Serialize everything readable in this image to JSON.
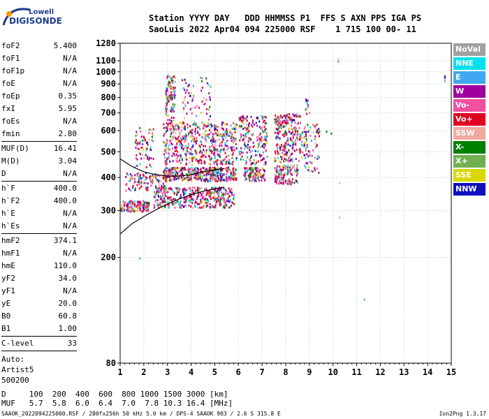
{
  "logo": {
    "top": "Lowell",
    "bottom": "DIGISONDE"
  },
  "header": {
    "line1": "Station YYYY DAY   DDD HHMMSS P1  FFS S AXN PPS IGA PS",
    "line2": "SaoLuis 2022 Apr04 094 225000 RSF    1 715 100 00- 11"
  },
  "params": {
    "group1": [
      {
        "name": "foF2",
        "value": "5.400"
      },
      {
        "name": "foF1",
        "value": "N/A"
      },
      {
        "name": "foF1p",
        "value": "N/A"
      },
      {
        "name": "foE",
        "value": "N/A"
      },
      {
        "name": "foEp",
        "value": "0.35"
      },
      {
        "name": "fxI",
        "value": "5.95"
      },
      {
        "name": "foEs",
        "value": "N/A"
      },
      {
        "name": "fmin",
        "value": "2.80"
      }
    ],
    "group2": [
      {
        "name": "MUF(D)",
        "value": "16.41"
      },
      {
        "name": "M(D)",
        "value": "3.04"
      },
      {
        "name": "D",
        "value": "N/A"
      }
    ],
    "group3": [
      {
        "name": "h`F",
        "value": "400.0"
      },
      {
        "name": "h`F2",
        "value": "400.0"
      },
      {
        "name": "h`E",
        "value": "N/A"
      },
      {
        "name": "h`Es",
        "value": "N/A"
      }
    ],
    "group4": [
      {
        "name": "hmF2",
        "value": "374.1"
      },
      {
        "name": "hmF1",
        "value": "N/A"
      },
      {
        "name": "hmE",
        "value": "110.0"
      },
      {
        "name": "yF2",
        "value": "34.0"
      },
      {
        "name": "yF1",
        "value": "N/A"
      },
      {
        "name": "yE",
        "value": "20.0"
      },
      {
        "name": "B0",
        "value": "60.8"
      },
      {
        "name": "B1",
        "value": "1.00"
      }
    ],
    "group5": [
      {
        "name": "C-level",
        "value": "33"
      }
    ],
    "auto": [
      "Auto:",
      "Artist5",
      "500200"
    ]
  },
  "legend": [
    {
      "label": "NoVal",
      "color": "#a0a0a0"
    },
    {
      "label": "NNE",
      "color": "#00e0f0"
    },
    {
      "label": "E",
      "color": "#40a8f0"
    },
    {
      "label": "W",
      "color": "#a000a0"
    },
    {
      "label": "Vo-",
      "color": "#f050a0"
    },
    {
      "label": "Vo+",
      "color": "#e00020"
    },
    {
      "label": "SSW",
      "color": "#f0a8a0"
    },
    {
      "label": "X-",
      "color": "#008000"
    },
    {
      "label": "X+",
      "color": "#70b050"
    },
    {
      "label": "SSE",
      "color": "#d8d800"
    },
    {
      "label": "NNW",
      "color": "#1010c0"
    }
  ],
  "chart_data": {
    "type": "scatter",
    "title": "",
    "xlabel": "",
    "ylabel": "",
    "xlim": [
      1,
      15
    ],
    "ylim": [
      80,
      1280
    ],
    "yscale": "log",
    "x_ticks": [
      "1",
      "2",
      "3",
      "4",
      "5",
      "6",
      "7",
      "8",
      "9",
      "10",
      "11",
      "12",
      "13",
      "14",
      "15"
    ],
    "y_ticks": [
      "80",
      "200",
      "300",
      "400",
      "500",
      "600",
      "700",
      "800",
      "900",
      "1000",
      "1100",
      "1280"
    ],
    "grid": true,
    "clusters": [
      {
        "f": [
          1.0,
          2.2
        ],
        "h": [
          300,
          330
        ],
        "n": 140
      },
      {
        "f": [
          1.2,
          3.0
        ],
        "h": [
          360,
          420
        ],
        "n": 120
      },
      {
        "f": [
          1.6,
          2.4
        ],
        "h": [
          440,
          620
        ],
        "n": 70
      },
      {
        "f": [
          2.4,
          5.8
        ],
        "h": [
          310,
          370
        ],
        "n": 420
      },
      {
        "f": [
          2.8,
          5.9
        ],
        "h": [
          390,
          440
        ],
        "n": 380
      },
      {
        "f": [
          2.8,
          5.9
        ],
        "h": [
          450,
          650
        ],
        "n": 520
      },
      {
        "f": [
          2.9,
          3.3
        ],
        "h": [
          650,
          990
        ],
        "n": 110
      },
      {
        "f": [
          3.6,
          4.8
        ],
        "h": [
          650,
          960
        ],
        "n": 60
      },
      {
        "f": [
          6.2,
          7.1
        ],
        "h": [
          390,
          440
        ],
        "n": 120
      },
      {
        "f": [
          6.0,
          7.2
        ],
        "h": [
          450,
          690
        ],
        "n": 200
      },
      {
        "f": [
          7.5,
          8.5
        ],
        "h": [
          380,
          450
        ],
        "n": 130
      },
      {
        "f": [
          7.5,
          8.6
        ],
        "h": [
          460,
          700
        ],
        "n": 260
      },
      {
        "f": [
          8.6,
          9.4
        ],
        "h": [
          420,
          640
        ],
        "n": 90
      },
      {
        "f": [
          8.8,
          9.0
        ],
        "h": [
          700,
          800
        ],
        "n": 12
      }
    ],
    "isolated_points": [
      {
        "f": 9.7,
        "h": 600,
        "color": "#008000"
      },
      {
        "f": 9.9,
        "h": 590,
        "color": "#008000"
      },
      {
        "f": 10.2,
        "h": 1100,
        "color": "#40a8f0"
      },
      {
        "f": 10.2,
        "h": 1120,
        "color": "#f0a8a0"
      },
      {
        "f": 10.25,
        "h": 385,
        "color": "#f0a8a0"
      },
      {
        "f": 10.25,
        "h": 285,
        "color": "#f0a8a0"
      },
      {
        "f": 11.3,
        "h": 140,
        "color": "#40a8f0"
      },
      {
        "f": 14.7,
        "h": 930,
        "color": "#40a8f0"
      },
      {
        "f": 14.7,
        "h": 955,
        "color": "#a000a0"
      },
      {
        "f": 14.7,
        "h": 970,
        "color": "#1010c0"
      },
      {
        "f": 1.8,
        "h": 200,
        "color": "#40a8f0"
      }
    ],
    "profile_lower": [
      [
        1.0,
        245
      ],
      [
        1.5,
        268
      ],
      [
        2.0,
        285
      ],
      [
        2.5,
        302
      ],
      [
        3.0,
        318
      ],
      [
        3.5,
        332
      ],
      [
        4.0,
        345
      ],
      [
        4.5,
        355
      ],
      [
        5.0,
        362
      ],
      [
        5.4,
        368
      ]
    ],
    "profile_upper": [
      [
        1.0,
        470
      ],
      [
        1.5,
        440
      ],
      [
        2.0,
        420
      ],
      [
        2.5,
        410
      ],
      [
        3.0,
        405
      ],
      [
        3.5,
        405
      ],
      [
        4.0,
        410
      ],
      [
        4.5,
        420
      ],
      [
        5.0,
        428
      ],
      [
        5.4,
        432
      ]
    ]
  },
  "footer": {
    "d_line": "D     100  200  400  600  800 1000 1500 3000 [km]",
    "muf_line": "MUF   5.7  5.8  6.0  6.4  7.0  7.8 10.3 16.4 [MHz]",
    "info": "SAAOK_2022094225000.RSF / 280fx256h 50 kHz 5.0 km / DPS-4 SAAOK 903 / 2.6 S 315.8 E",
    "version": "Ion2Png 1.3.17"
  }
}
